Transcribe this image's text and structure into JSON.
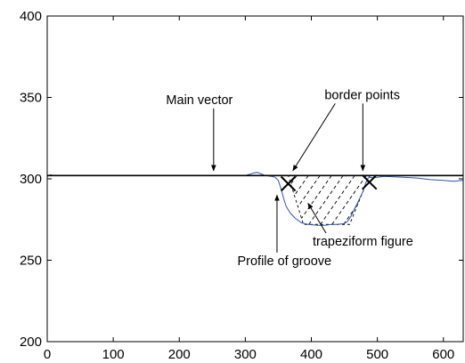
{
  "chart_data": {
    "type": "line",
    "title": "",
    "xlabel": "",
    "ylabel": "",
    "xlim": [
      0,
      630
    ],
    "ylim": [
      200,
      400
    ],
    "xticks": [
      0,
      100,
      200,
      300,
      400,
      500,
      600
    ],
    "yticks": [
      200,
      250,
      300,
      350,
      400
    ],
    "grid": false,
    "series": [
      {
        "role": "profile",
        "color": "#3355aa",
        "x": [
          0,
          5,
          10,
          50,
          100,
          200,
          300,
          312,
          318,
          324,
          330,
          340,
          345,
          350,
          354,
          358,
          362,
          368,
          375,
          385,
          395,
          410,
          420,
          430,
          440,
          450,
          455,
          460,
          466,
          472,
          478,
          482,
          485,
          488,
          495,
          500,
          510,
          540,
          560,
          580,
          600,
          615,
          630
        ],
        "y": [
          301.5,
          302.5,
          302,
          302,
          302,
          302,
          302,
          303.5,
          304,
          303,
          302,
          301.5,
          301,
          299,
          294,
          288,
          283,
          279,
          276,
          273,
          272,
          271.5,
          271.5,
          272,
          272,
          272.5,
          274,
          277,
          282,
          287,
          292,
          297,
          300,
          301,
          300.5,
          301,
          301.5,
          301,
          300.5,
          299.5,
          299,
          298.5,
          299
        ]
      },
      {
        "role": "main-vector",
        "color": "#000000",
        "x": [
          0,
          630
        ],
        "y": [
          302,
          302
        ]
      }
    ],
    "border_points": [
      {
        "x": 365,
        "y": 297
      },
      {
        "x": 488,
        "y": 298
      }
    ],
    "trapeziform_figure": {
      "x": [
        365,
        488,
        458,
        388
      ],
      "y": [
        302,
        302,
        272,
        272
      ]
    },
    "annotations": [
      {
        "text": "Main vector",
        "text_x": 180,
        "text_y": 346,
        "arrow_to": [
          252,
          305
        ]
      },
      {
        "text": "border points",
        "text_x": 420,
        "text_y": 349,
        "arrow_to_list": [
          [
            372,
            305
          ],
          [
            478,
            305
          ]
        ]
      },
      {
        "text": "trapeziform figure",
        "text_x": 402,
        "text_y": 259,
        "arrow_to": [
          395,
          285
        ]
      },
      {
        "text": "Profile of groove",
        "text_x": 288,
        "text_y": 247,
        "arrow_to": [
          348,
          290
        ]
      }
    ]
  }
}
